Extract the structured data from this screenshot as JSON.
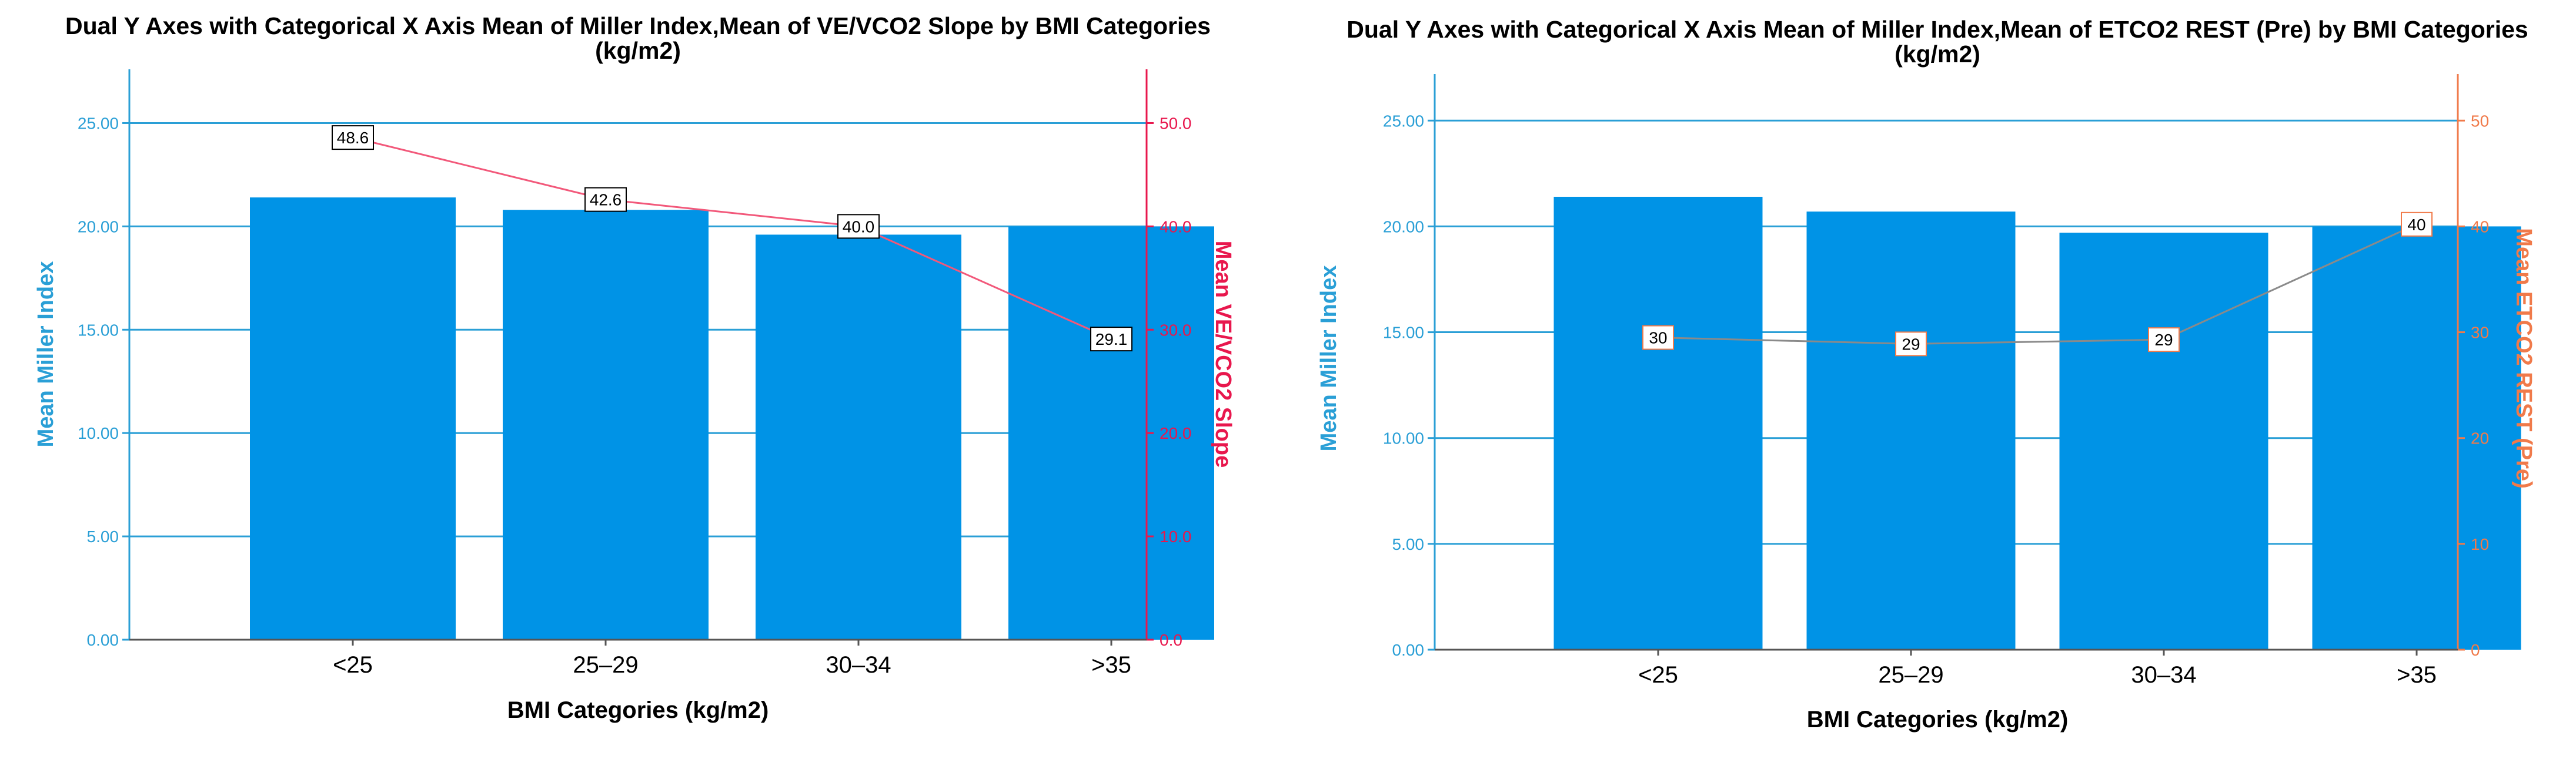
{
  "chart_data": [
    {
      "type": "bar",
      "title": "Dual Y Axes with Categorical X Axis Mean of Miller Index,Mean of VE/VCO2 Slope  by BMI Categories",
      "subtitle": "(kg/m2)",
      "xlabel": "BMI Categories (kg/m2)",
      "ylabel": "Mean Miller Index",
      "y2label": "Mean VE/VCO2 Slope",
      "categories": [
        "<25",
        "25–29",
        "30–34",
        ">35"
      ],
      "ylim": [
        0,
        27.6
      ],
      "yticks": [
        "0.00",
        "5.00",
        "10.00",
        "15.00",
        "20.00",
        "25.00"
      ],
      "y2lim": [
        0,
        55.2
      ],
      "y2ticks": [
        "0.0",
        "10.0",
        "20.0",
        "30.0",
        "40.0",
        "50.0"
      ],
      "grid": true,
      "series": [
        {
          "axis": "left",
          "type": "bar",
          "values": [
            21.4,
            20.8,
            19.6,
            20.0
          ]
        },
        {
          "axis": "right",
          "type": "line",
          "values": [
            48.6,
            42.6,
            40.0,
            29.1
          ],
          "labels": [
            "48.6",
            "42.6",
            "40.0",
            "29.1"
          ]
        }
      ],
      "colors": {
        "bar": "#0093e6",
        "line": "#f2587a",
        "left_axis": "#2a9fd6",
        "right_axis": "#e8174d",
        "grid": "#2a9fd6"
      }
    },
    {
      "type": "bar",
      "title": "Dual Y Axes with Categorical X Axis Mean of Miller Index,Mean of ETCO2 REST (Pre)  by BMI Categories",
      "subtitle": "(kg/m2)",
      "xlabel": "BMI Categories (kg/m2)",
      "ylabel": "Mean Miller Index",
      "y2label": "Mean ETCO2 REST (Pre)",
      "categories": [
        "<25",
        "25–29",
        "30–34",
        ">35"
      ],
      "ylim": [
        0,
        27.2
      ],
      "yticks": [
        "0.00",
        "5.00",
        "10.00",
        "15.00",
        "20.00",
        "25.00"
      ],
      "y2lim": [
        0,
        54.4
      ],
      "y2ticks": [
        "0",
        "10",
        "20",
        "30",
        "40",
        "50"
      ],
      "grid": true,
      "series": [
        {
          "axis": "left",
          "type": "bar",
          "values": [
            21.4,
            20.7,
            19.7,
            20.0
          ]
        },
        {
          "axis": "right",
          "type": "line",
          "values": [
            29.5,
            28.9,
            29.3,
            40.2
          ],
          "labels": [
            "30",
            "29",
            "29",
            "40"
          ]
        }
      ],
      "colors": {
        "bar": "#0093e6",
        "line": "#8a8a8a",
        "left_axis": "#2a9fd6",
        "right_axis": "#f07a4a",
        "grid": "#2a9fd6"
      }
    }
  ]
}
